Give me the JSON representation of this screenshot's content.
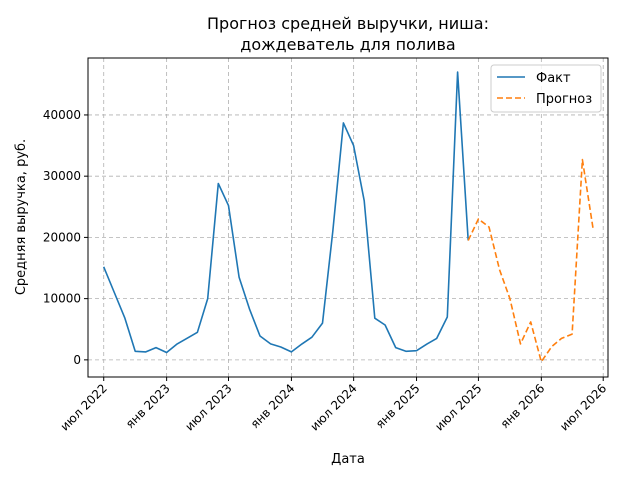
{
  "chart_data": {
    "type": "line",
    "title_line1": "Прогноз средней выручки, ниша:",
    "title_line2": "дождеватель для полива",
    "xlabel": "Дата",
    "ylabel": "Средняя выручка, руб.",
    "grid": true,
    "legend_position": "top-right",
    "xlim": [
      "2022-05-16",
      "2026-07-15"
    ],
    "ylim": [
      -2800,
      49300
    ],
    "x_ticks": [
      {
        "date": "2022-07-01",
        "label": "июл 2022"
      },
      {
        "date": "2023-01-01",
        "label": "янв 2023"
      },
      {
        "date": "2023-07-01",
        "label": "июл 2023"
      },
      {
        "date": "2024-01-01",
        "label": "янв 2024"
      },
      {
        "date": "2024-07-01",
        "label": "июл 2024"
      },
      {
        "date": "2025-01-01",
        "label": "янв 2025"
      },
      {
        "date": "2025-07-01",
        "label": "июл 2025"
      },
      {
        "date": "2026-01-01",
        "label": "янв 2026"
      },
      {
        "date": "2026-07-01",
        "label": "июл 2026"
      }
    ],
    "y_ticks": [
      0,
      10000,
      20000,
      30000,
      40000
    ],
    "series": [
      {
        "name": "Факт",
        "color": "#1f77b4",
        "style": "solid",
        "points": [
          {
            "x": "2022-07-01",
            "y": 15200
          },
          {
            "x": "2022-08-01",
            "y": 11000
          },
          {
            "x": "2022-09-01",
            "y": 6800
          },
          {
            "x": "2022-10-01",
            "y": 1400
          },
          {
            "x": "2022-11-01",
            "y": 1300
          },
          {
            "x": "2022-12-01",
            "y": 2000
          },
          {
            "x": "2023-01-01",
            "y": 1200
          },
          {
            "x": "2023-02-01",
            "y": 2600
          },
          {
            "x": "2023-03-01",
            "y": 3500
          },
          {
            "x": "2023-04-01",
            "y": 4500
          },
          {
            "x": "2023-05-01",
            "y": 10000
          },
          {
            "x": "2023-06-01",
            "y": 28800
          },
          {
            "x": "2023-07-01",
            "y": 25200
          },
          {
            "x": "2023-08-01",
            "y": 13500
          },
          {
            "x": "2023-09-01",
            "y": 8200
          },
          {
            "x": "2023-10-01",
            "y": 3900
          },
          {
            "x": "2023-11-01",
            "y": 2600
          },
          {
            "x": "2023-12-01",
            "y": 2100
          },
          {
            "x": "2024-01-01",
            "y": 1300
          },
          {
            "x": "2024-02-01",
            "y": 2600
          },
          {
            "x": "2024-03-01",
            "y": 3700
          },
          {
            "x": "2024-04-01",
            "y": 6000
          },
          {
            "x": "2024-05-01",
            "y": 21000
          },
          {
            "x": "2024-06-01",
            "y": 38700
          },
          {
            "x": "2024-07-01",
            "y": 35000
          },
          {
            "x": "2024-08-01",
            "y": 26000
          },
          {
            "x": "2024-09-01",
            "y": 6800
          },
          {
            "x": "2024-10-01",
            "y": 5700
          },
          {
            "x": "2024-11-01",
            "y": 2000
          },
          {
            "x": "2024-12-01",
            "y": 1400
          },
          {
            "x": "2025-01-01",
            "y": 1500
          },
          {
            "x": "2025-02-01",
            "y": 2600
          },
          {
            "x": "2025-03-01",
            "y": 3500
          },
          {
            "x": "2025-04-01",
            "y": 7000
          },
          {
            "x": "2025-05-01",
            "y": 47000
          },
          {
            "x": "2025-06-01",
            "y": 19500
          }
        ]
      },
      {
        "name": "Прогноз",
        "color": "#ff7f0e",
        "style": "dashed",
        "points": [
          {
            "x": "2025-06-01",
            "y": 19500
          },
          {
            "x": "2025-07-01",
            "y": 23000
          },
          {
            "x": "2025-08-01",
            "y": 21700
          },
          {
            "x": "2025-09-01",
            "y": 14700
          },
          {
            "x": "2025-10-01",
            "y": 10000
          },
          {
            "x": "2025-11-01",
            "y": 2600
          },
          {
            "x": "2025-12-01",
            "y": 6200
          },
          {
            "x": "2026-01-01",
            "y": -300
          },
          {
            "x": "2026-02-01",
            "y": 2200
          },
          {
            "x": "2026-03-01",
            "y": 3500
          },
          {
            "x": "2026-04-01",
            "y": 4200
          },
          {
            "x": "2026-05-01",
            "y": 32700
          },
          {
            "x": "2026-06-01",
            "y": 21500
          }
        ]
      }
    ]
  }
}
